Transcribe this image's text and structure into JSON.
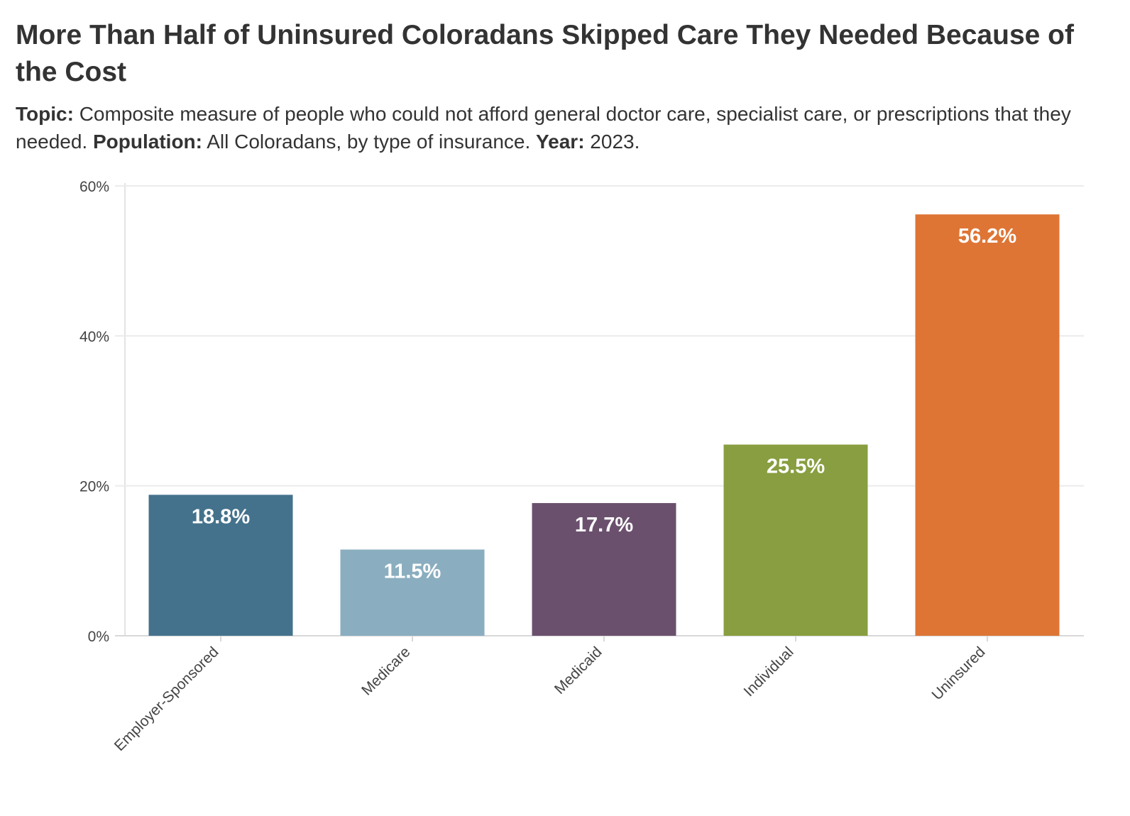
{
  "header": {
    "title": "More Than Half of Uninsured Coloradans Skipped Care They Needed Because of the Cost",
    "topic_label": "Topic:",
    "topic_text": " Composite measure of people who could not afford general doctor care, specialist care, or prescriptions that they needed. ",
    "population_label": "Population:",
    "population_text": " All Coloradans, by type of insurance. ",
    "year_label": "Year:",
    "year_text": " 2023."
  },
  "chart_data": {
    "type": "bar",
    "categories": [
      "Employer-Sponsored",
      "Medicare",
      "Medicaid",
      "Individual",
      "Uninsured"
    ],
    "values": [
      18.8,
      11.5,
      17.7,
      25.5,
      56.2
    ],
    "data_labels": [
      "18.8%",
      "11.5%",
      "17.7%",
      "25.5%",
      "56.2%"
    ],
    "colors": [
      "#44728c",
      "#8aaebf",
      "#6b506e",
      "#889e40",
      "#de7535"
    ],
    "ylim": [
      0,
      60
    ],
    "yticks": [
      0,
      20,
      40,
      60
    ],
    "ytick_labels": [
      "0%",
      "20%",
      "40%",
      "60%"
    ],
    "grid": true,
    "xlabel": "",
    "ylabel": ""
  }
}
